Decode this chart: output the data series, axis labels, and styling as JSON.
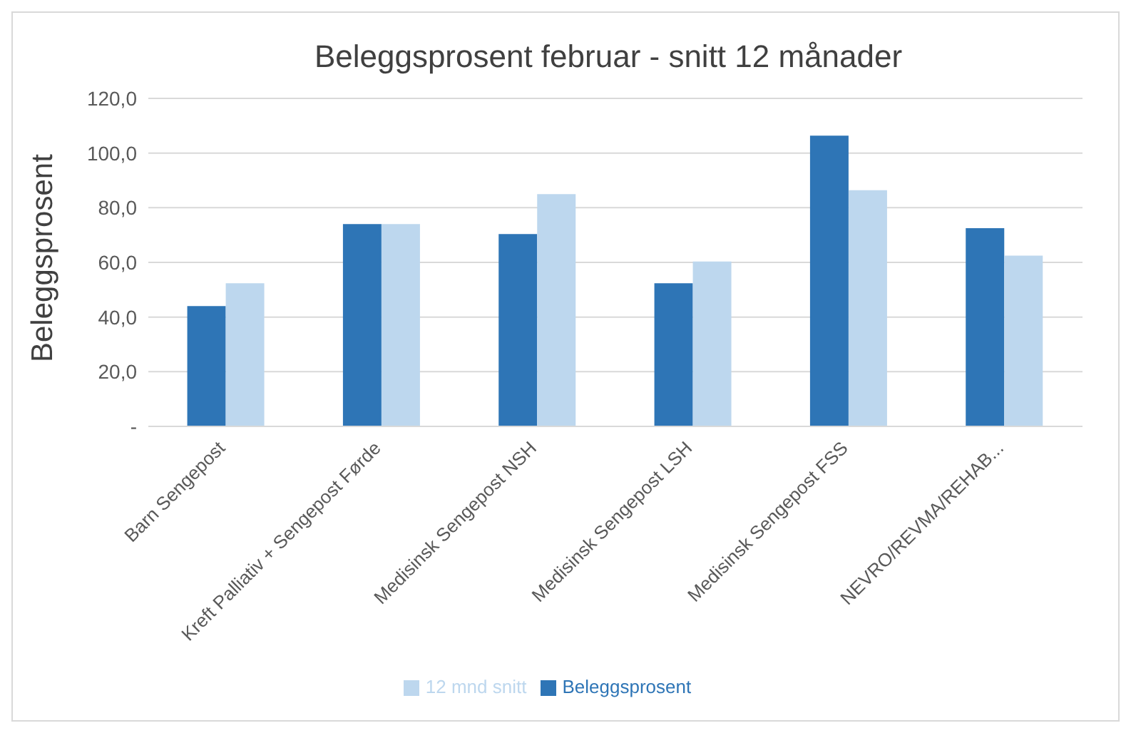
{
  "chart_data": {
    "type": "bar",
    "title": "Beleggsprosent februar  -  snitt 12 månader",
    "ylabel": "Beleggsprosent",
    "categories": [
      "Barn Sengepost",
      "Kreft Palliativ + Sengepost Førde",
      "Medisinsk Sengepost NSH",
      "Medisinsk Sengepost LSH",
      "Medisinsk Sengepost FSS",
      "NEVRO/REVMA/REHAB..."
    ],
    "series": [
      {
        "name": "Beleggsprosent",
        "color": "#2e75b6",
        "values": [
          44,
          74,
          70.4,
          52.4,
          106.4,
          72.5
        ]
      },
      {
        "name": "12 mnd snitt",
        "color": "#bdd7ee",
        "values": [
          52.4,
          74,
          85,
          60.3,
          86.4,
          62.5
        ]
      }
    ],
    "ylim": [
      0,
      120
    ],
    "yticks": [
      {
        "value": 0,
        "label": "-"
      },
      {
        "value": 20,
        "label": "20,0"
      },
      {
        "value": 40,
        "label": "40,0"
      },
      {
        "value": 60,
        "label": "60,0"
      },
      {
        "value": 80,
        "label": "80,0"
      },
      {
        "value": 100,
        "label": "100,0"
      },
      {
        "value": 120,
        "label": "120,0"
      }
    ],
    "grid": "y",
    "legend": "bottom"
  }
}
